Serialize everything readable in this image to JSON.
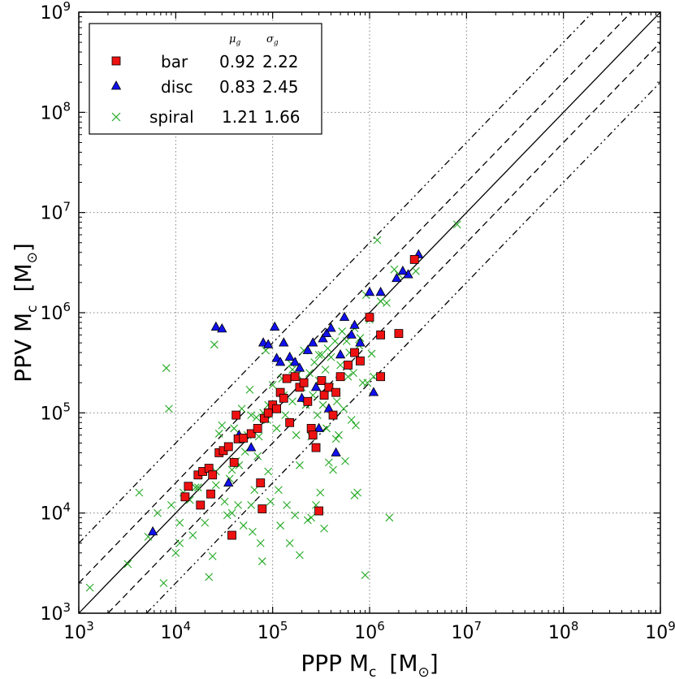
{
  "chart_data": {
    "type": "scatter",
    "xscale": "log",
    "yscale": "log",
    "xlim": [
      1000,
      1000000000
    ],
    "ylim": [
      1000,
      1000000000
    ],
    "xlabel": "PPP  M",
    "xlabel_sub": "c",
    "xlabel_unit": "[M",
    "ylabel": "PPV  M",
    "ylabel_sub": "c",
    "ylabel_unit": "[M",
    "unit_symbol": "⊙",
    "unit_close": "]",
    "tick_base": "10",
    "tick_exponents": [
      3,
      4,
      5,
      6,
      7,
      8,
      9
    ],
    "grid": true,
    "legend_position": "top-left",
    "legend_headers": [
      {
        "symbol": "μ",
        "sub": "g"
      },
      {
        "symbol": "σ",
        "sub": "g"
      }
    ],
    "reference_lines": [
      {
        "name": "one-to-one",
        "factor": 1,
        "style": "solid"
      },
      {
        "name": "factor-2-upper",
        "factor": 2,
        "style": "dashed"
      },
      {
        "name": "factor-2-lower",
        "factor": 0.5,
        "style": "dashed"
      },
      {
        "name": "factor-5-upper",
        "factor": 5,
        "style": "dashdot"
      },
      {
        "name": "factor-5-lower",
        "factor": 0.2,
        "style": "dashdot"
      }
    ],
    "series": [
      {
        "name": "bar",
        "marker": "square",
        "color": "#ee1111",
        "mu_g": "0.92",
        "sigma_g": "2.22",
        "points": [
          [
            12500,
            14500
          ],
          [
            13500,
            18500
          ],
          [
            17000,
            24000
          ],
          [
            18000,
            12000
          ],
          [
            19000,
            26000
          ],
          [
            22000,
            28000
          ],
          [
            23000,
            15500
          ],
          [
            24000,
            24000
          ],
          [
            28000,
            40000
          ],
          [
            31000,
            42000
          ],
          [
            35000,
            46000
          ],
          [
            38000,
            6000
          ],
          [
            40000,
            32000
          ],
          [
            42000,
            95000
          ],
          [
            44000,
            55000
          ],
          [
            50000,
            56000
          ],
          [
            60000,
            62000
          ],
          [
            70000,
            70000
          ],
          [
            75000,
            20000
          ],
          [
            78000,
            11000
          ],
          [
            82000,
            88000
          ],
          [
            90000,
            100000
          ],
          [
            100000,
            120000
          ],
          [
            110000,
            110000
          ],
          [
            120000,
            160000
          ],
          [
            130000,
            140000
          ],
          [
            140000,
            220000
          ],
          [
            150000,
            80000
          ],
          [
            170000,
            230000
          ],
          [
            190000,
            180000
          ],
          [
            210000,
            200000
          ],
          [
            230000,
            130000
          ],
          [
            250000,
            70000
          ],
          [
            260000,
            60000
          ],
          [
            280000,
            45000
          ],
          [
            300000,
            10500
          ],
          [
            320000,
            210000
          ],
          [
            340000,
            150000
          ],
          [
            380000,
            180000
          ],
          [
            420000,
            95000
          ],
          [
            450000,
            160000
          ],
          [
            500000,
            230000
          ],
          [
            600000,
            300000
          ],
          [
            700000,
            400000
          ],
          [
            800000,
            330000
          ],
          [
            1000000,
            900000
          ],
          [
            1300000,
            600000
          ],
          [
            1300000,
            230000
          ],
          [
            2000000,
            620000
          ],
          [
            2900000,
            3400000
          ]
        ]
      },
      {
        "name": "disc",
        "marker": "triangle",
        "color": "#1111ee",
        "mu_g": "0.83",
        "sigma_g": "2.45",
        "points": [
          [
            5800,
            6500
          ],
          [
            26000,
            720000
          ],
          [
            30000,
            690000
          ],
          [
            35000,
            20000
          ],
          [
            45000,
            60000
          ],
          [
            60000,
            45000
          ],
          [
            80000,
            500000
          ],
          [
            90000,
            480000
          ],
          [
            100000,
            110000
          ],
          [
            105000,
            720000
          ],
          [
            110000,
            350000
          ],
          [
            120000,
            320000
          ],
          [
            130000,
            500000
          ],
          [
            150000,
            360000
          ],
          [
            170000,
            320000
          ],
          [
            190000,
            280000
          ],
          [
            200000,
            140000
          ],
          [
            230000,
            420000
          ],
          [
            260000,
            500000
          ],
          [
            280000,
            180000
          ],
          [
            300000,
            70000
          ],
          [
            330000,
            550000
          ],
          [
            360000,
            620000
          ],
          [
            380000,
            110000
          ],
          [
            400000,
            700000
          ],
          [
            450000,
            40000
          ],
          [
            500000,
            380000
          ],
          [
            550000,
            900000
          ],
          [
            650000,
            600000
          ],
          [
            800000,
            500000
          ],
          [
            1000000,
            1600000
          ],
          [
            1100000,
            160000
          ],
          [
            1300000,
            1600000
          ],
          [
            1900000,
            2200000
          ],
          [
            2500000,
            2400000
          ],
          [
            3200000,
            3800000
          ],
          [
            2200000,
            2600000
          ],
          [
            700000,
            750000
          ]
        ]
      },
      {
        "name": "spiral",
        "marker": "x",
        "color": "#22aa22",
        "mu_g": "1.21",
        "sigma_g": "1.66",
        "points": [
          [
            1300,
            1800
          ],
          [
            3200,
            3100
          ],
          [
            4200,
            16000
          ],
          [
            5200,
            5800
          ],
          [
            6500,
            10000
          ],
          [
            7500,
            2000
          ],
          [
            8000,
            280000
          ],
          [
            8500,
            110000
          ],
          [
            9000,
            12000
          ],
          [
            10000,
            4000
          ],
          [
            11000,
            8000
          ],
          [
            12000,
            16000
          ],
          [
            14000,
            13500
          ],
          [
            15000,
            6000
          ],
          [
            17000,
            18000
          ],
          [
            18000,
            12000
          ],
          [
            20000,
            8000
          ],
          [
            22000,
            2300
          ],
          [
            24000,
            3700
          ],
          [
            25000,
            480000
          ],
          [
            26000,
            19000
          ],
          [
            28000,
            62000
          ],
          [
            30000,
            75000
          ],
          [
            32000,
            13000
          ],
          [
            34000,
            9500
          ],
          [
            36000,
            22000
          ],
          [
            38000,
            27000
          ],
          [
            40000,
            70000
          ],
          [
            42000,
            33000
          ],
          [
            44000,
            12000
          ],
          [
            48000,
            110000
          ],
          [
            50000,
            7500
          ],
          [
            52000,
            41000
          ],
          [
            55000,
            60000
          ],
          [
            58000,
            170000
          ],
          [
            60000,
            12000
          ],
          [
            62000,
            6500
          ],
          [
            65000,
            17000
          ],
          [
            68000,
            90000
          ],
          [
            70000,
            37000
          ],
          [
            72000,
            58000
          ],
          [
            75000,
            5000
          ],
          [
            78000,
            3300
          ],
          [
            80000,
            100000
          ],
          [
            85000,
            420000
          ],
          [
            88000,
            85000
          ],
          [
            90000,
            26000
          ],
          [
            95000,
            13000
          ],
          [
            100000,
            190000
          ],
          [
            110000,
            70000
          ],
          [
            115000,
            17000
          ],
          [
            120000,
            7500
          ],
          [
            125000,
            220000
          ],
          [
            130000,
            150000
          ],
          [
            135000,
            95000
          ],
          [
            140000,
            12000
          ],
          [
            150000,
            5000
          ],
          [
            155000,
            310000
          ],
          [
            160000,
            130000
          ],
          [
            170000,
            9500
          ],
          [
            175000,
            60000
          ],
          [
            180000,
            240000
          ],
          [
            190000,
            30000
          ],
          [
            200000,
            180000
          ],
          [
            210000,
            420000
          ],
          [
            220000,
            120000
          ],
          [
            230000,
            8500
          ],
          [
            240000,
            250000
          ],
          [
            250000,
            58000
          ],
          [
            260000,
            150000
          ],
          [
            270000,
            320000
          ],
          [
            280000,
            12000
          ],
          [
            290000,
            95000
          ],
          [
            300000,
            210000
          ],
          [
            310000,
            16000
          ],
          [
            320000,
            380000
          ],
          [
            330000,
            120000
          ],
          [
            340000,
            7000
          ],
          [
            350000,
            270000
          ],
          [
            360000,
            70000
          ],
          [
            370000,
            440000
          ],
          [
            380000,
            32000
          ],
          [
            390000,
            180000
          ],
          [
            400000,
            360000
          ],
          [
            420000,
            27000
          ],
          [
            440000,
            520000
          ],
          [
            460000,
            130000
          ],
          [
            480000,
            60000
          ],
          [
            500000,
            300000
          ],
          [
            520000,
            650000
          ],
          [
            540000,
            110000
          ],
          [
            560000,
            33000
          ],
          [
            580000,
            520000
          ],
          [
            600000,
            230000
          ],
          [
            620000,
            400000
          ],
          [
            650000,
            85000
          ],
          [
            680000,
            250000
          ],
          [
            700000,
            700000
          ],
          [
            720000,
            75000
          ],
          [
            750000,
            16000
          ],
          [
            780000,
            470000
          ],
          [
            800000,
            560000
          ],
          [
            850000,
            200000
          ],
          [
            900000,
            2400
          ],
          [
            920000,
            1500000
          ],
          [
            950000,
            200000
          ],
          [
            1000000,
            850000
          ],
          [
            1050000,
            390000
          ],
          [
            1100000,
            230000
          ],
          [
            1200000,
            5300000
          ],
          [
            1300000,
            1300000
          ],
          [
            1500000,
            1250000
          ],
          [
            1800000,
            2700000
          ],
          [
            2000000,
            2400000
          ],
          [
            8000000,
            7600000
          ],
          [
            1600000,
            9000
          ],
          [
            700000,
            15000
          ],
          [
            450000,
            55000
          ],
          [
            3000000,
            2600000
          ],
          [
            300000,
            380000
          ],
          [
            160000,
            270000
          ],
          [
            90000,
            120000
          ],
          [
            60000,
            95000
          ],
          [
            45000,
            30000
          ],
          [
            26000,
            26000
          ],
          [
            16000,
            18000
          ],
          [
            11000,
            5000
          ],
          [
            38000,
            10000
          ],
          [
            190000,
            3800
          ],
          [
            250000,
            9000
          ]
        ]
      }
    ]
  }
}
